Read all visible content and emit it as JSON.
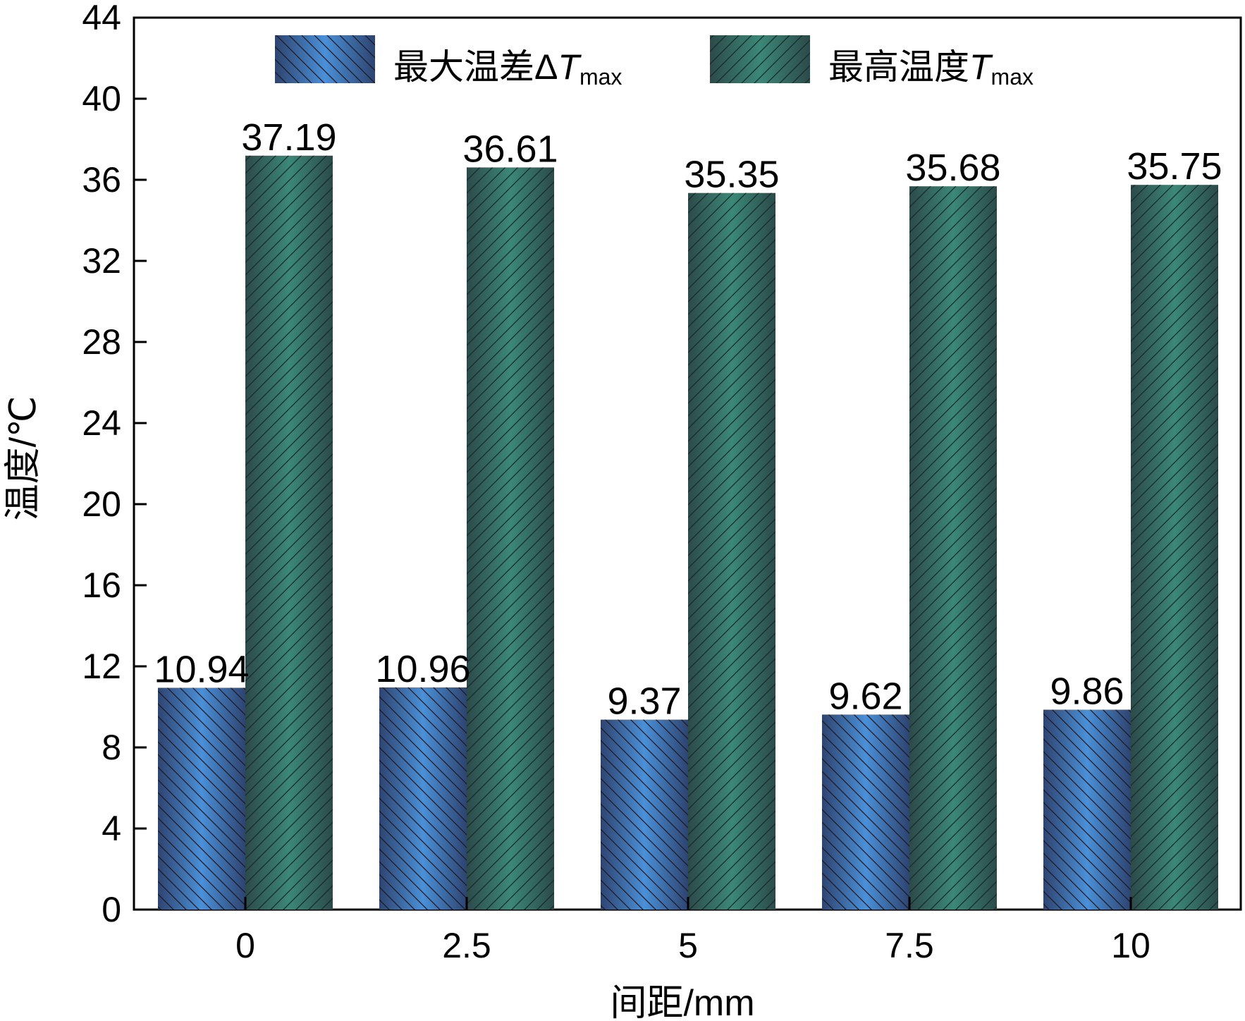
{
  "chart_data": {
    "type": "bar",
    "categories": [
      "0",
      "2.5",
      "5",
      "7.5",
      "10"
    ],
    "series": [
      {
        "name": "最大温差ΔTmax",
        "name_main": "最大温差Δ",
        "name_italic": "T",
        "name_sub": "max",
        "values": [
          10.94,
          10.96,
          9.37,
          9.62,
          9.86
        ],
        "labels": [
          "10.94",
          "10.96",
          "9.37",
          "9.62",
          "9.86"
        ],
        "color": "#4a90d8",
        "edge_color": "#2e4470"
      },
      {
        "name": "最高温度Tmax",
        "name_main": "最高温度",
        "name_italic": "T",
        "name_sub": "max",
        "values": [
          37.19,
          36.61,
          35.35,
          35.68,
          35.75
        ],
        "labels": [
          "37.19",
          "36.61",
          "35.35",
          "35.68",
          "35.75"
        ],
        "color": "#3b8878",
        "edge_color": "#2c4a4a"
      }
    ],
    "xlabel": "间距/mm",
    "ylabel": "温度/℃",
    "ylim": [
      0,
      44
    ],
    "yticks": [
      "0",
      "4",
      "8",
      "12",
      "16",
      "20",
      "24",
      "28",
      "32",
      "36",
      "40",
      "44"
    ],
    "grid": false,
    "legend_position": "top"
  }
}
